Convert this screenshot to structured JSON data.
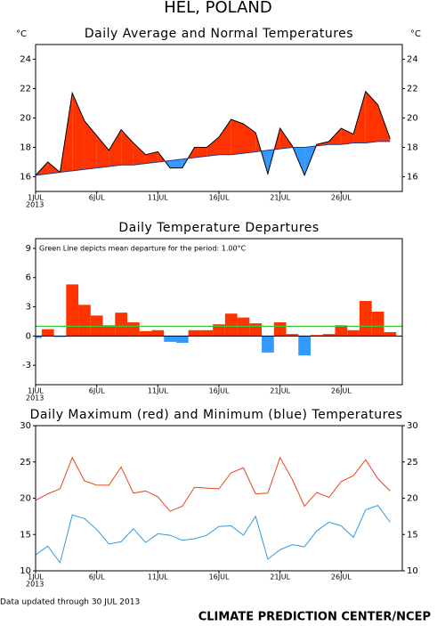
{
  "title": "HEL, POLAND",
  "footnote": "Data updated through 30 JUL 2013",
  "credit": "CLIMATE PREDICTION CENTER/NCEP",
  "chart_data": [
    {
      "type": "area",
      "title": "Daily Average and Normal Temperatures",
      "ylabel": "°C",
      "x": [
        1,
        2,
        3,
        4,
        5,
        6,
        7,
        8,
        9,
        10,
        11,
        12,
        13,
        14,
        15,
        16,
        17,
        18,
        19,
        20,
        21,
        22,
        23,
        24,
        25,
        26,
        27,
        28,
        29,
        30
      ],
      "xlim": [
        1,
        31
      ],
      "xticks": [
        {
          "value": 1,
          "label": "1JUL"
        },
        {
          "value": 6,
          "label": "6JUL"
        },
        {
          "value": 11,
          "label": "11JUL"
        },
        {
          "value": 16,
          "label": "16JUL"
        },
        {
          "value": 21,
          "label": "21JUL"
        },
        {
          "value": 26,
          "label": "26JUL"
        }
      ],
      "year_label": "2013",
      "ylim": [
        15,
        25
      ],
      "yticks": [
        16,
        18,
        20,
        22,
        24
      ],
      "right_ticks": true,
      "above_color": "#ff3300",
      "below_color": "#3399ff",
      "series": [
        {
          "color": "#000000",
          "values": [
            16.1,
            17.0,
            16.3,
            21.7,
            19.8,
            18.8,
            17.8,
            19.2,
            18.3,
            17.5,
            17.7,
            16.6,
            16.6,
            18.0,
            18.0,
            18.7,
            19.9,
            19.6,
            19.0,
            16.2,
            19.3,
            18.1,
            16.1,
            18.2,
            18.4,
            19.3,
            18.9,
            21.8,
            20.9,
            18.6
          ]
        },
        {
          "color": "#1f3a93",
          "values": [
            16.1,
            16.2,
            16.3,
            16.4,
            16.5,
            16.6,
            16.7,
            16.8,
            16.8,
            16.9,
            17.0,
            17.1,
            17.2,
            17.3,
            17.4,
            17.5,
            17.5,
            17.6,
            17.7,
            17.8,
            17.9,
            18.0,
            18.0,
            18.1,
            18.2,
            18.2,
            18.3,
            18.3,
            18.4,
            18.4
          ]
        }
      ]
    },
    {
      "type": "bar",
      "title": "Daily Temperature Departures",
      "annotation": "Green Line depicts mean departure for the period:  1.00°C",
      "x": [
        1,
        2,
        3,
        4,
        5,
        6,
        7,
        8,
        9,
        10,
        11,
        12,
        13,
        14,
        15,
        16,
        17,
        18,
        19,
        20,
        21,
        22,
        23,
        24,
        25,
        26,
        27,
        28,
        29,
        30
      ],
      "xlim": [
        1,
        31
      ],
      "xticks": [
        {
          "value": 1,
          "label": "1JUL"
        },
        {
          "value": 6,
          "label": "6JUL"
        },
        {
          "value": 11,
          "label": "11JUL"
        },
        {
          "value": 16,
          "label": "16JUL"
        },
        {
          "value": 21,
          "label": "21JUL"
        },
        {
          "value": 26,
          "label": "26JUL"
        }
      ],
      "year_label": "2013",
      "ylim": [
        -5,
        10
      ],
      "yticks": [
        -3,
        0,
        3,
        6,
        9
      ],
      "right_ticks": false,
      "pos_color": "#ff3300",
      "neg_color": "#3399ff",
      "values": [
        -0.2,
        0.7,
        -0.1,
        5.3,
        3.2,
        2.1,
        1.1,
        2.4,
        1.4,
        0.5,
        0.6,
        -0.6,
        -0.7,
        0.6,
        0.6,
        1.2,
        2.3,
        1.9,
        1.3,
        -1.7,
        1.4,
        0.2,
        -2.0,
        0.1,
        0.2,
        1.1,
        0.6,
        3.6,
        2.5,
        0.4
      ],
      "mean_line": 1.0,
      "mean_color": "#33cc33"
    },
    {
      "type": "line",
      "title": "Daily Maximum (red) and Minimum (blue) Temperatures",
      "x": [
        1,
        2,
        3,
        4,
        5,
        6,
        7,
        8,
        9,
        10,
        11,
        12,
        13,
        14,
        15,
        16,
        17,
        18,
        19,
        20,
        21,
        22,
        23,
        24,
        25,
        26,
        27,
        28,
        29,
        30
      ],
      "xlim": [
        1,
        31
      ],
      "xticks": [
        {
          "value": 1,
          "label": "1JUL"
        },
        {
          "value": 6,
          "label": "6JUL"
        },
        {
          "value": 11,
          "label": "11JUL"
        },
        {
          "value": 16,
          "label": "16JUL"
        },
        {
          "value": 21,
          "label": "21JUL"
        },
        {
          "value": 26,
          "label": "26JUL"
        }
      ],
      "year_label": "2013",
      "ylim": [
        10,
        30
      ],
      "yticks": [
        10,
        15,
        20,
        25,
        30
      ],
      "right_ticks": true,
      "series": [
        {
          "color": "#e8441a",
          "values": [
            19.7,
            20.6,
            21.3,
            25.6,
            22.4,
            21.8,
            21.8,
            24.3,
            20.7,
            21.0,
            20.2,
            18.2,
            18.9,
            21.5,
            21.4,
            21.3,
            23.5,
            24.2,
            20.6,
            20.7,
            25.6,
            22.6,
            18.9,
            20.8,
            20.1,
            22.3,
            23.1,
            25.3,
            22.7,
            21.0
          ]
        },
        {
          "color": "#3399dd",
          "values": [
            12.2,
            13.4,
            11.1,
            17.7,
            17.2,
            15.7,
            13.7,
            14.0,
            15.8,
            13.9,
            15.1,
            14.9,
            14.2,
            14.4,
            14.9,
            16.1,
            16.2,
            14.9,
            17.5,
            11.6,
            12.9,
            13.6,
            13.3,
            15.5,
            16.7,
            16.2,
            14.6,
            18.4,
            19.0,
            16.7
          ]
        }
      ]
    }
  ]
}
